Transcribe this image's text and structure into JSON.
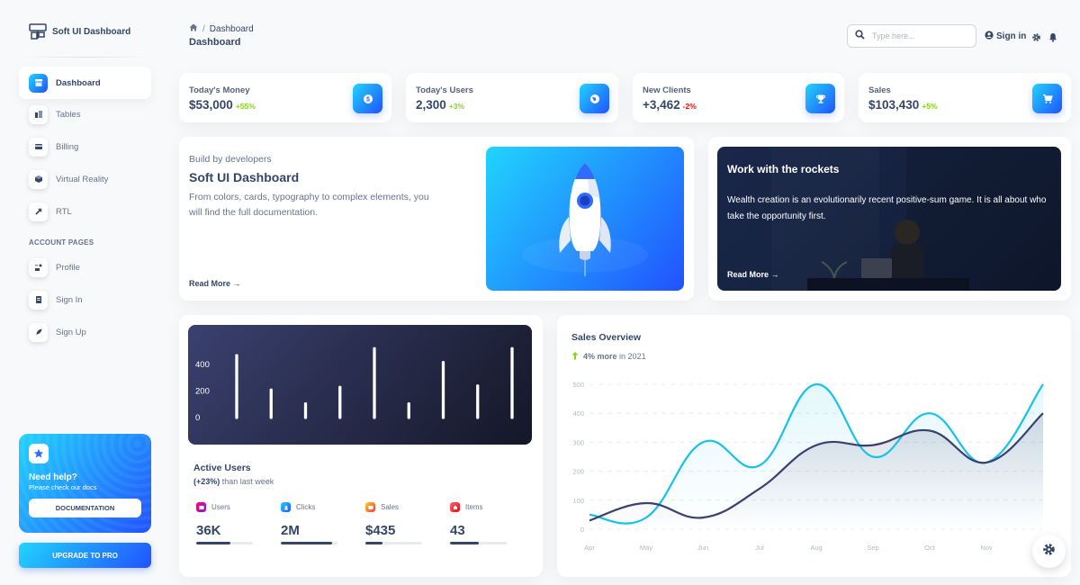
{
  "brand": {
    "name": "Soft UI Dashboard"
  },
  "sidebar": {
    "items": [
      {
        "label": "Dashboard",
        "icon": "shop-icon",
        "active": true
      },
      {
        "label": "Tables",
        "icon": "office-icon"
      },
      {
        "label": "Billing",
        "icon": "credit-card-icon"
      },
      {
        "label": "Virtual Reality",
        "icon": "box-3d-icon"
      },
      {
        "label": "RTL",
        "icon": "settings-icon"
      }
    ],
    "section_title": "ACCOUNT PAGES",
    "account_items": [
      {
        "label": "Profile",
        "icon": "customer-support-icon"
      },
      {
        "label": "Sign In",
        "icon": "document-icon"
      },
      {
        "label": "Sign Up",
        "icon": "spaceship-icon"
      }
    ],
    "help": {
      "title": "Need help?",
      "subtitle": "Please check our docs",
      "button": "DOCUMENTATION"
    },
    "upgrade": "UPGRADE TO PRO"
  },
  "header": {
    "breadcrumb_current": "Dashboard",
    "page_title": "Dashboard",
    "search_placeholder": "Type here...",
    "signin": "Sign in"
  },
  "stats": [
    {
      "title": "Today's Money",
      "value": "$53,000",
      "change": "+55%",
      "change_color": "#82d616",
      "icon": "money-coins-icon"
    },
    {
      "title": "Today's Users",
      "value": "2,300",
      "change": "+3%",
      "change_color": "#82d616",
      "icon": "world-icon"
    },
    {
      "title": "New Clients",
      "value": "+3,462",
      "change": "-2%",
      "change_color": "#ea0606",
      "icon": "trophy-icon"
    },
    {
      "title": "Sales",
      "value": "$103,430",
      "change": "+5%",
      "change_color": "#82d616",
      "icon": "cart-icon"
    }
  ],
  "developers_card": {
    "kicker": "Build by developers",
    "title": "Soft UI Dashboard",
    "description": "From colors, cards, typography to complex elements, you will find the full documentation.",
    "read_more": "Read More →"
  },
  "rockets_card": {
    "title": "Work with the rockets",
    "description": "Wealth creation is an evolutionarily recent positive-sum game. It is all about who take the opportunity first.",
    "read_more": "Read More →"
  },
  "active_users": {
    "title": "Active Users",
    "change": "(+23%)",
    "subtitle_rest": " than last week",
    "items": [
      {
        "label": "Users",
        "value": "36K",
        "progress": 0.6,
        "icon": "library-icon",
        "color": "#cb0c9f"
      },
      {
        "label": "Clicks",
        "value": "2M",
        "progress": 0.9,
        "icon": "rocket-icon",
        "color": "#17c1e8"
      },
      {
        "label": "Sales",
        "value": "$435",
        "progress": 0.3,
        "icon": "cart-icon",
        "color": "#f53939"
      },
      {
        "label": "Items",
        "value": "43",
        "progress": 0.5,
        "icon": "settings-icon",
        "color": "#ea0606"
      }
    ]
  },
  "sales_overview": {
    "title": "Sales Overview",
    "change": "4% more",
    "subtitle_rest": "in 2021"
  },
  "chart_data": [
    {
      "type": "bar",
      "y_ticks": [
        "400",
        "200",
        "0"
      ],
      "ylim": [
        0,
        500
      ],
      "values": [
        450,
        200,
        100,
        220,
        500,
        100,
        400,
        230,
        500
      ],
      "grid": false
    },
    {
      "type": "line",
      "title": "Sales Overview",
      "categories": [
        "Apr",
        "May",
        "Jun",
        "Jul",
        "Aug",
        "Sep",
        "Oct",
        "Nov",
        "Dec"
      ],
      "y_ticks": [
        "500",
        "400",
        "300",
        "200",
        "100",
        "0"
      ],
      "ylim": [
        0,
        500
      ],
      "grid": true,
      "series": [
        {
          "color": "#17c1e8",
          "values": [
            50,
            40,
            300,
            220,
            500,
            250,
            400,
            230,
            500
          ]
        },
        {
          "color": "#3a416f",
          "values": [
            30,
            90,
            40,
            140,
            290,
            290,
            340,
            230,
            400
          ]
        }
      ]
    }
  ]
}
